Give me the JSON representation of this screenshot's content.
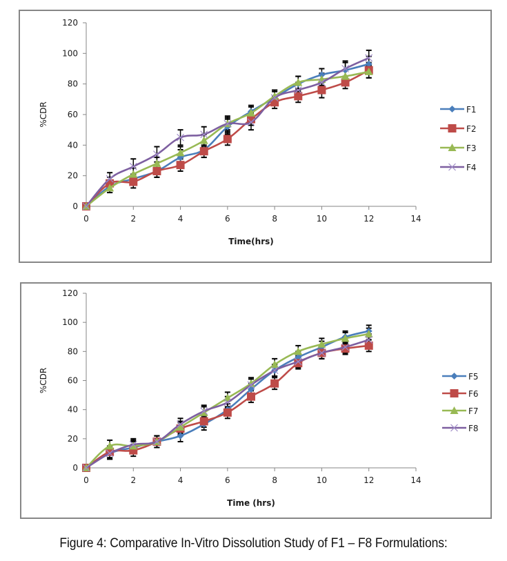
{
  "figure": {
    "caption": "Figure 4: Comparative In-Vitro Dissolution Study of F1 – F8 Formulations:"
  },
  "chart_data": [
    {
      "type": "line",
      "title": "",
      "xlabel": "Time(hrs)",
      "ylabel": "%CDR",
      "xlim": [
        0,
        14
      ],
      "ylim": [
        0,
        120
      ],
      "xticks": [
        0,
        2,
        4,
        6,
        8,
        10,
        12,
        14
      ],
      "yticks": [
        0,
        20,
        40,
        60,
        80,
        100,
        120
      ],
      "grid": false,
      "legend": "right",
      "smooth": true,
      "x": [
        0,
        1,
        2,
        3,
        4,
        5,
        6,
        7,
        8,
        9,
        10,
        11,
        12
      ],
      "series": [
        {
          "name": "F1",
          "color": "#4a7ebb",
          "marker": "diamond",
          "values": [
            0,
            13,
            18,
            23,
            32,
            37,
            52,
            62,
            71,
            80,
            86,
            89,
            93
          ],
          "errors": [
            0,
            4,
            3,
            4,
            5,
            5,
            5,
            4,
            4,
            5,
            4,
            5,
            5
          ]
        },
        {
          "name": "F2",
          "color": "#be4b48",
          "marker": "square",
          "values": [
            0,
            15,
            16,
            23,
            27,
            36,
            44,
            57,
            68,
            72,
            76,
            81,
            89
          ],
          "errors": [
            0,
            4,
            4,
            4,
            4,
            4,
            4,
            4,
            4,
            4,
            5,
            4,
            5
          ]
        },
        {
          "name": "F3",
          "color": "#98b954",
          "marker": "triangle",
          "values": [
            0,
            12,
            21,
            28,
            35,
            43,
            54,
            61,
            72,
            81,
            83,
            85,
            88
          ],
          "errors": [
            0,
            3,
            4,
            4,
            4,
            4,
            4,
            4,
            4,
            4,
            4,
            4,
            4
          ]
        },
        {
          "name": "F4",
          "color": "#7d5fa0",
          "marker": "x",
          "values": [
            0,
            18,
            26,
            34,
            45,
            47,
            54,
            55,
            71,
            76,
            81,
            90,
            97
          ],
          "errors": [
            0,
            4,
            5,
            5,
            5,
            5,
            5,
            5,
            5,
            5,
            5,
            5,
            5
          ]
        }
      ]
    },
    {
      "type": "line",
      "title": "",
      "xlabel": "Time (hrs)",
      "ylabel": "%CDR",
      "xlim": [
        0,
        14
      ],
      "ylim": [
        0,
        120
      ],
      "xticks": [
        0,
        2,
        4,
        6,
        8,
        10,
        12,
        14
      ],
      "yticks": [
        0,
        20,
        40,
        60,
        80,
        100,
        120
      ],
      "grid": false,
      "legend": "right",
      "smooth": true,
      "x": [
        0,
        1,
        2,
        3,
        4,
        5,
        6,
        7,
        8,
        9,
        10,
        11,
        12
      ],
      "series": [
        {
          "name": "F5",
          "color": "#4a7ebb",
          "marker": "diamond",
          "values": [
            0,
            10,
            14,
            18,
            22,
            30,
            40,
            54,
            67,
            76,
            83,
            90,
            94
          ],
          "errors": [
            0,
            4,
            4,
            4,
            4,
            4,
            4,
            4,
            4,
            4,
            4,
            4,
            4
          ]
        },
        {
          "name": "F6",
          "color": "#be4b48",
          "marker": "square",
          "values": [
            0,
            11,
            12,
            18,
            27,
            32,
            38,
            49,
            58,
            72,
            79,
            82,
            84
          ],
          "errors": [
            0,
            4,
            4,
            4,
            4,
            4,
            4,
            4,
            4,
            4,
            4,
            4,
            4
          ]
        },
        {
          "name": "F7",
          "color": "#98b954",
          "marker": "triangle",
          "values": [
            0,
            15,
            15,
            18,
            28,
            38,
            48,
            58,
            71,
            80,
            85,
            89,
            92
          ],
          "errors": [
            0,
            4,
            4,
            4,
            4,
            4,
            4,
            4,
            4,
            4,
            4,
            4,
            4
          ]
        },
        {
          "name": "F8",
          "color": "#7d5fa0",
          "marker": "x",
          "values": [
            0,
            10,
            16,
            18,
            30,
            39,
            45,
            57,
            67,
            73,
            79,
            83,
            88
          ],
          "errors": [
            0,
            4,
            4,
            4,
            4,
            4,
            4,
            4,
            4,
            4,
            4,
            4,
            4
          ]
        }
      ]
    }
  ]
}
